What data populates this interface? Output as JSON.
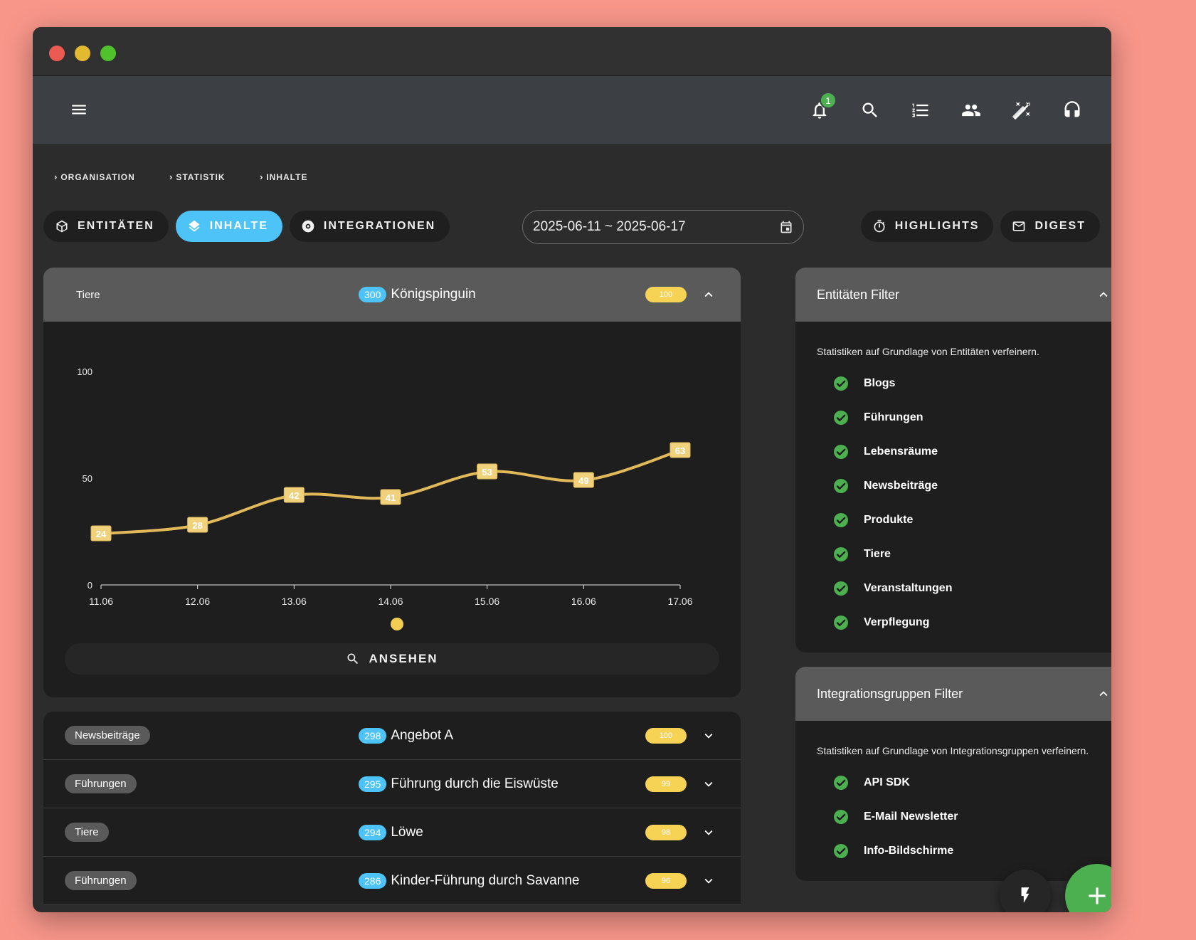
{
  "appbar": {
    "notification_count": "1"
  },
  "breadcrumb": [
    "ORGANISATION",
    "STATISTIK",
    "INHALTE"
  ],
  "tabs": [
    {
      "label": "ENTITÄTEN",
      "icon": "cube-icon"
    },
    {
      "label": "INHALTE",
      "icon": "layers-icon",
      "active": true
    },
    {
      "label": "INTEGRATIONEN",
      "icon": "integration-icon"
    }
  ],
  "daterange": {
    "value": "2025-06-11 ~ 2025-06-17"
  },
  "actions": [
    {
      "label": "HIGHLIGHTS",
      "icon": "timer-icon"
    },
    {
      "label": "DIGEST",
      "icon": "mail-icon"
    }
  ],
  "main_card": {
    "category": "Tiere",
    "count": "300",
    "title": "Königspinguin",
    "score": "100",
    "view_label": "ANSEHEN"
  },
  "chart_data": {
    "type": "line",
    "x": [
      "11.06",
      "12.06",
      "13.06",
      "14.06",
      "15.06",
      "16.06",
      "17.06"
    ],
    "values": [
      24,
      28,
      42,
      41,
      53,
      49,
      63
    ],
    "yticks": [
      0,
      50,
      100
    ],
    "ylim": [
      0,
      100
    ],
    "color": "#e1b95a",
    "legend": "bottom-center"
  },
  "list_items": [
    {
      "category": "Newsbeiträge",
      "count": "298",
      "title": "Angebot A",
      "score": "100"
    },
    {
      "category": "Führungen",
      "count": "295",
      "title": "Führung durch die Eiswüste",
      "score": "99"
    },
    {
      "category": "Tiere",
      "count": "294",
      "title": "Löwe",
      "score": "98"
    },
    {
      "category": "Führungen",
      "count": "286",
      "title": "Kinder-Führung durch Savanne",
      "score": "96"
    }
  ],
  "entity_filter": {
    "title": "Entitäten Filter",
    "description": "Statistiken auf Grundlage von Entitäten verfeinern.",
    "items": [
      "Blogs",
      "Führungen",
      "Lebensräume",
      "Newsbeiträge",
      "Produkte",
      "Tiere",
      "Veranstaltungen",
      "Verpflegung"
    ]
  },
  "integration_filter": {
    "title": "Integrationsgruppen Filter",
    "description": "Statistiken auf Grundlage von Integrationsgruppen verfeinern.",
    "items": [
      "API SDK",
      "E-Mail Newsletter",
      "Info-Bildschirme"
    ]
  },
  "colors": {
    "accent_blue": "#4dc3f7",
    "green": "#4caf50",
    "score_yellow": "#f6d255"
  }
}
